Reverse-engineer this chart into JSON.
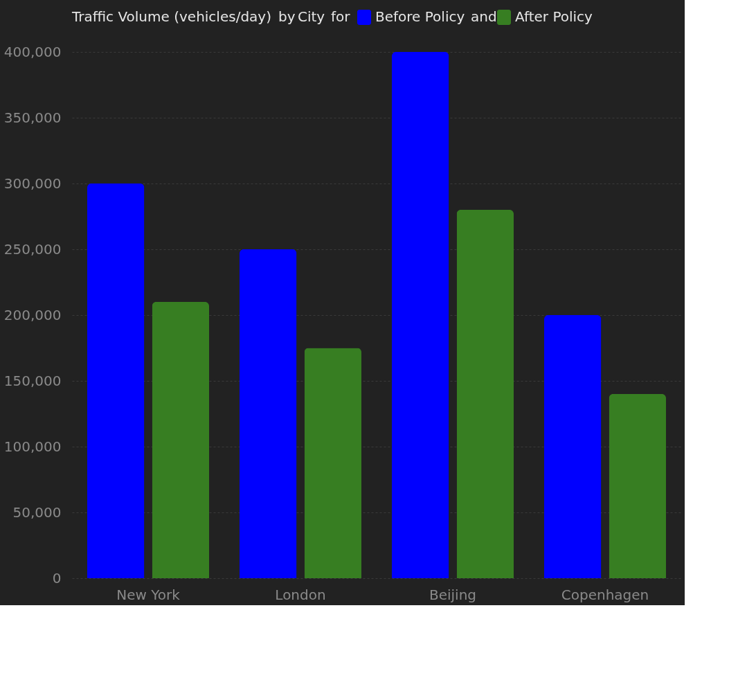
{
  "chart_data": {
    "type": "bar",
    "ylabel": "Traffic Volume (vehicles/day)",
    "xlabel": "City",
    "annotations": [
      "by",
      "for",
      "and"
    ],
    "categories": [
      "New York",
      "London",
      "Beijing",
      "Copenhagen"
    ],
    "series": [
      {
        "name": "Before Policy",
        "color": "#0000ff",
        "values": [
          300000,
          250000,
          400000,
          200000
        ]
      },
      {
        "name": "After Policy",
        "color": "#377e22",
        "values": [
          210000,
          175000,
          280000,
          140000
        ]
      }
    ],
    "ylim": [
      0,
      400000
    ],
    "yticks": [
      0,
      {
        "value": 50000,
        "label": "50,000"
      },
      {
        "value": 100000,
        "label": "100,000"
      },
      {
        "value": 150000,
        "label": "150,000"
      },
      {
        "value": 200000,
        "label": "200,000"
      },
      {
        "value": 250000,
        "label": "250,000"
      },
      {
        "value": 300000,
        "label": "300,000"
      },
      {
        "value": 350000,
        "label": "350,000"
      },
      {
        "value": 400000,
        "label": "400,000"
      }
    ],
    "grid": "y",
    "legend": "top"
  }
}
